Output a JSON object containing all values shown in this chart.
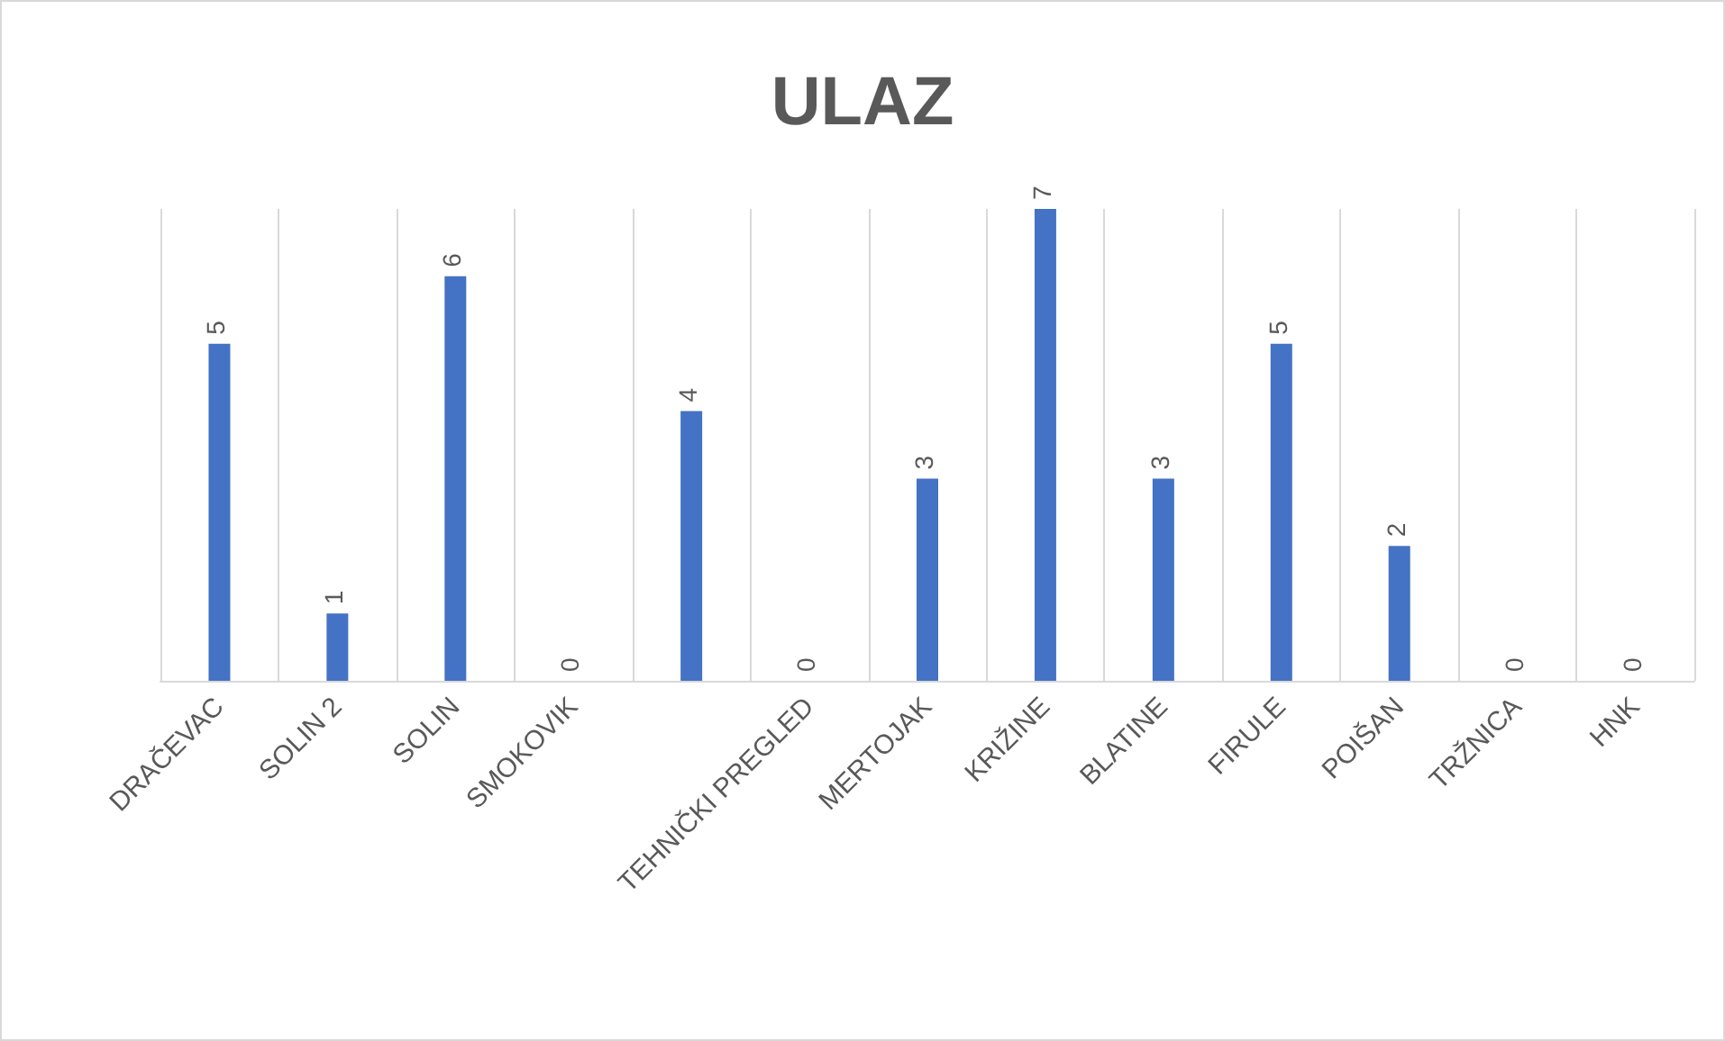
{
  "chart_data": {
    "type": "bar",
    "title": "ULAZ",
    "categories": [
      "DRAČEVAC",
      "SOLIN 2",
      "SOLIN",
      "SMOKOVIK",
      null,
      "TEHNIČKI PREGLED",
      "MERTOJAK",
      "KRIŽINE",
      "BLATINE",
      "FIRULE",
      "POIŠAN",
      "TRŽNICA",
      "HNK"
    ],
    "values": [
      5,
      1,
      6,
      0,
      4,
      0,
      3,
      7,
      3,
      5,
      2,
      0,
      0
    ],
    "color": "#4472c4",
    "data_labels": true,
    "grid": "x"
  }
}
